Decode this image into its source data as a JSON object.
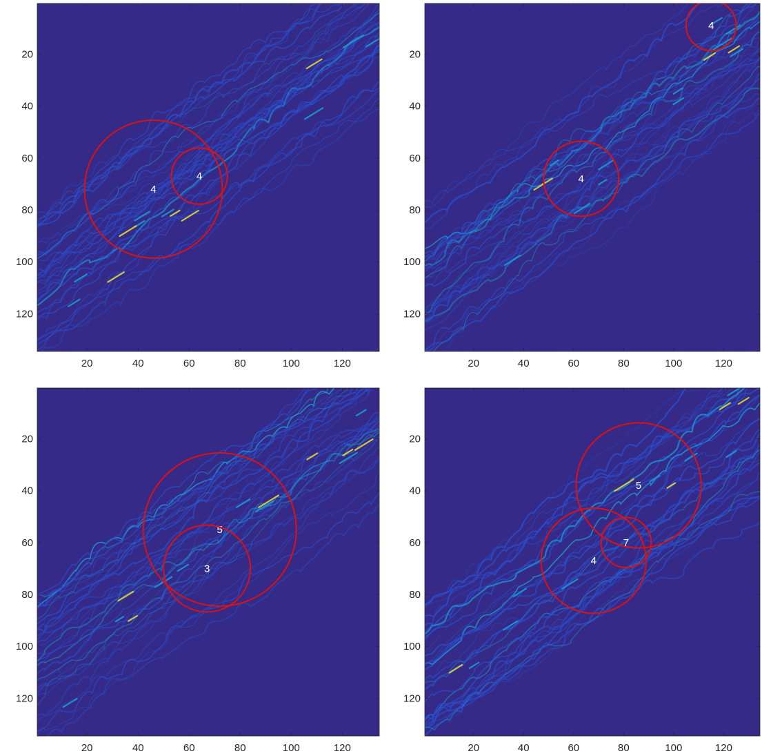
{
  "chart_data": [
    {
      "type": "heatmap",
      "panel": "top-left",
      "xlim": [
        0.5,
        134.5
      ],
      "ylim": [
        0.5,
        134.5
      ],
      "y_reversed": true,
      "xticks": [
        20,
        40,
        60,
        80,
        100,
        120
      ],
      "yticks": [
        20,
        40,
        60,
        80,
        100,
        120
      ],
      "colormap": "parula",
      "background_color": "#352a87",
      "circles": [
        {
          "cx": 46,
          "cy": 72,
          "r": 27,
          "label": "4"
        },
        {
          "cx": 64,
          "cy": 67,
          "r": 11,
          "label": "4"
        }
      ]
    },
    {
      "type": "heatmap",
      "panel": "top-right",
      "xlim": [
        0.5,
        134.5
      ],
      "ylim": [
        0.5,
        134.5
      ],
      "y_reversed": true,
      "xticks": [
        20,
        40,
        60,
        80,
        100,
        120
      ],
      "yticks": [
        20,
        40,
        60,
        80,
        100,
        120
      ],
      "colormap": "parula",
      "background_color": "#352a87",
      "circles": [
        {
          "cx": 63,
          "cy": 68,
          "r": 15,
          "label": "4"
        },
        {
          "cx": 115,
          "cy": 9,
          "r": 10,
          "label": "4"
        }
      ]
    },
    {
      "type": "heatmap",
      "panel": "bottom-left",
      "xlim": [
        0.5,
        134.5
      ],
      "ylim": [
        0.5,
        134.5
      ],
      "y_reversed": true,
      "xticks": [
        20,
        40,
        60,
        80,
        100,
        120
      ],
      "yticks": [
        20,
        40,
        60,
        80,
        100,
        120
      ],
      "colormap": "parula",
      "background_color": "#352a87",
      "circles": [
        {
          "cx": 72,
          "cy": 55,
          "r": 30,
          "label": "5"
        },
        {
          "cx": 67,
          "cy": 70,
          "r": 17,
          "label": "3"
        }
      ]
    },
    {
      "type": "heatmap",
      "panel": "bottom-right",
      "xlim": [
        0.5,
        134.5
      ],
      "ylim": [
        0.5,
        134.5
      ],
      "y_reversed": true,
      "xticks": [
        20,
        40,
        60,
        80,
        100,
        120
      ],
      "yticks": [
        20,
        40,
        60,
        80,
        100,
        120
      ],
      "colormap": "parula",
      "background_color": "#352a87",
      "circles": [
        {
          "cx": 86,
          "cy": 38,
          "r": 25,
          "label": "5"
        },
        {
          "cx": 68,
          "cy": 67,
          "r": 21,
          "label": "4"
        },
        {
          "cx": 81,
          "cy": 60,
          "r": 10,
          "label": "7"
        }
      ]
    }
  ],
  "colors": {
    "background": "#352a87",
    "circle": "#e01010",
    "bright_ridge": "#e8e030",
    "mid_ridge": "#1a9fd8",
    "dim_ridge": "#2a4fd0"
  }
}
